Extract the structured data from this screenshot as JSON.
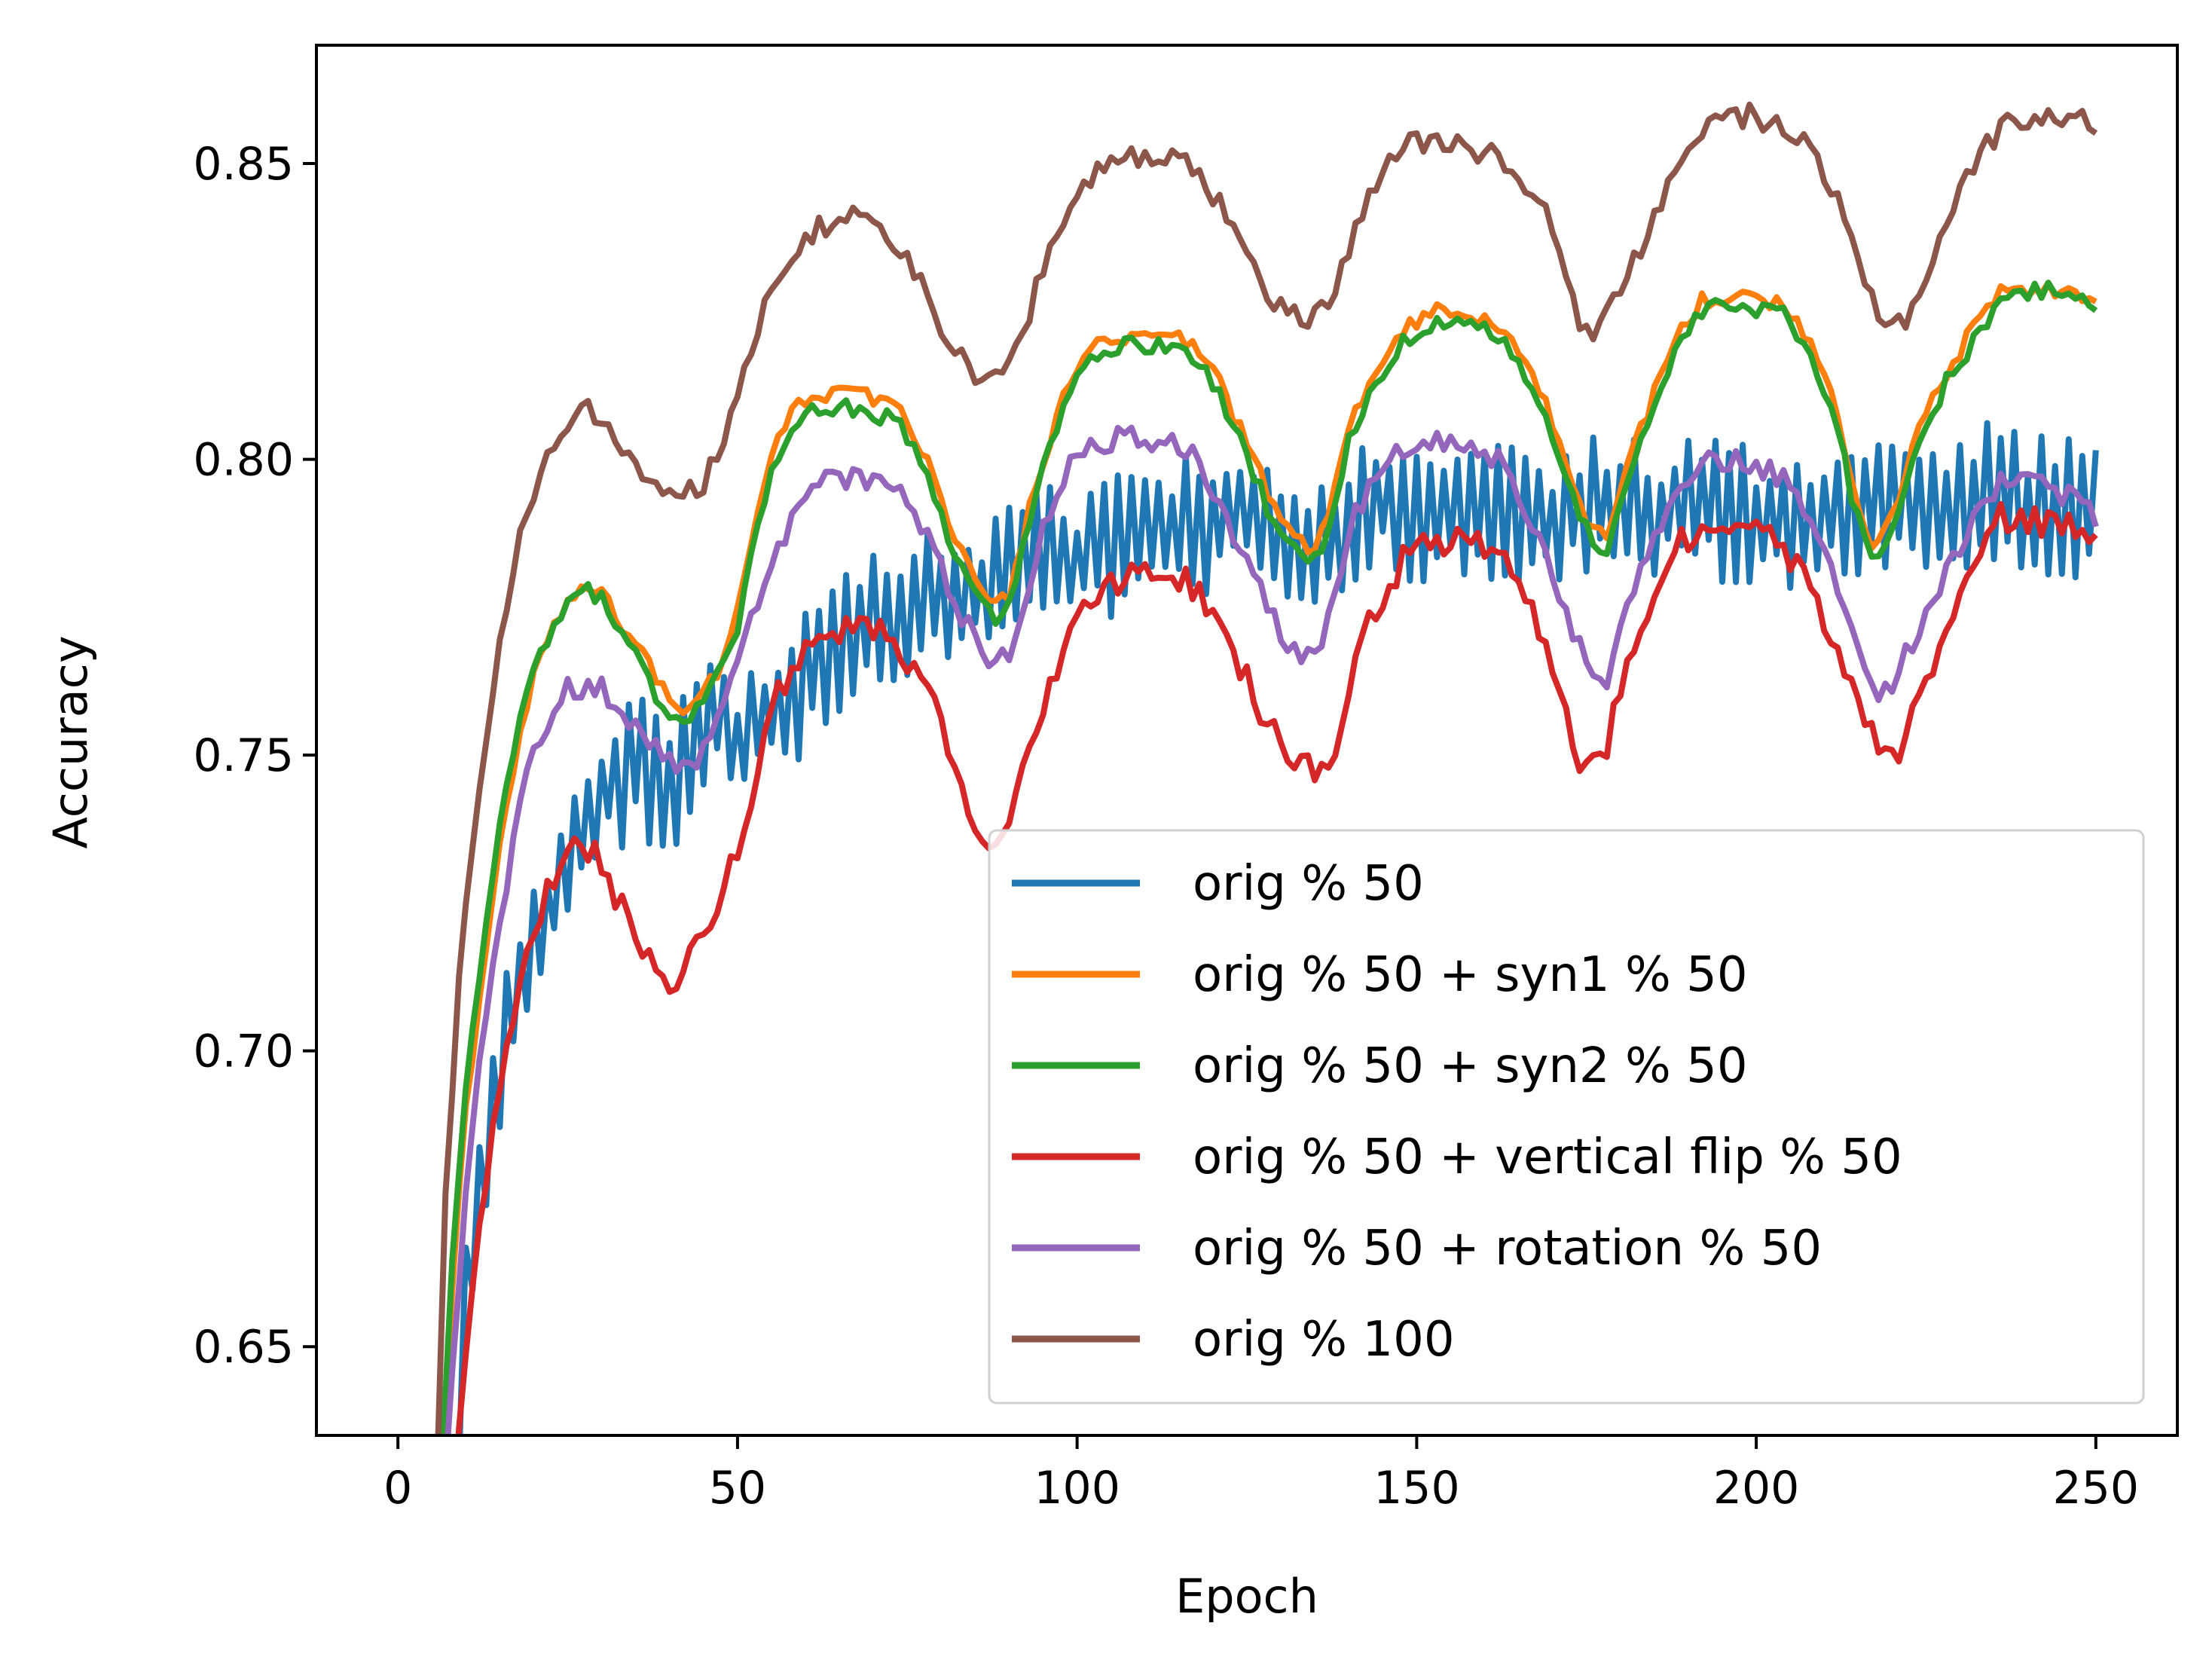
{
  "chart_data": {
    "type": "line",
    "title": "",
    "xlabel": "Epoch",
    "ylabel": "Accuracy",
    "xlim": [
      -12,
      262
    ],
    "ylim": [
      0.635,
      0.87
    ],
    "xticks": [
      0,
      50,
      100,
      150,
      200,
      250
    ],
    "xtick_labels": [
      "0",
      "50",
      "100",
      "150",
      "200",
      "250"
    ],
    "yticks": [
      0.65,
      0.7,
      0.75,
      0.8,
      0.85
    ],
    "ytick_labels": [
      "0.65",
      "0.70",
      "0.75",
      "0.80",
      "0.85"
    ],
    "grid": false,
    "legend_position": "lower-right",
    "series": [
      {
        "name": "orig % 50",
        "color": "#1f77b4",
        "noise": 0.012,
        "x": [
          5,
          8,
          10,
          12,
          14,
          16,
          18,
          20,
          22,
          25,
          28,
          30,
          33,
          36,
          38,
          40,
          42,
          45,
          48,
          50,
          55,
          60,
          65,
          70,
          75,
          80,
          85,
          90,
          95,
          100,
          105,
          110,
          115,
          120,
          125,
          130,
          135,
          140,
          145,
          150,
          155,
          160,
          165,
          170,
          175,
          180,
          185,
          190,
          195,
          200,
          205,
          210,
          215,
          220,
          225,
          230,
          235,
          240,
          245,
          250
        ],
        "y": [
          0.6,
          0.63,
          0.655,
          0.675,
          0.69,
          0.705,
          0.712,
          0.718,
          0.724,
          0.73,
          0.74,
          0.743,
          0.746,
          0.748,
          0.745,
          0.742,
          0.748,
          0.755,
          0.758,
          0.752,
          0.757,
          0.762,
          0.768,
          0.772,
          0.775,
          0.778,
          0.777,
          0.78,
          0.784,
          0.782,
          0.785,
          0.787,
          0.79,
          0.788,
          0.792,
          0.787,
          0.786,
          0.789,
          0.792,
          0.79,
          0.79,
          0.79,
          0.791,
          0.79,
          0.792,
          0.793,
          0.79,
          0.793,
          0.791,
          0.791,
          0.79,
          0.792,
          0.792,
          0.792,
          0.793,
          0.791,
          0.795,
          0.793,
          0.792,
          0.792
        ]
      },
      {
        "name": "orig % 50 + syn1 % 50",
        "color": "#ff7f0e",
        "noise": 0.0015,
        "x": [
          5,
          8,
          10,
          12,
          15,
          18,
          20,
          22,
          25,
          28,
          30,
          33,
          36,
          38,
          40,
          42,
          44,
          46,
          48,
          50,
          52,
          55,
          58,
          62,
          66,
          70,
          74,
          78,
          82,
          86,
          88,
          90,
          92,
          95,
          98,
          100,
          104,
          108,
          112,
          116,
          120,
          124,
          128,
          130,
          132,
          134,
          136,
          138,
          140,
          144,
          148,
          152,
          156,
          160,
          164,
          168,
          172,
          174,
          176,
          178,
          180,
          184,
          188,
          192,
          196,
          200,
          204,
          208,
          212,
          214,
          216,
          218,
          220,
          224,
          228,
          232,
          236,
          240,
          244,
          248,
          250
        ],
        "y": [
          0.6,
          0.66,
          0.69,
          0.71,
          0.735,
          0.755,
          0.763,
          0.77,
          0.776,
          0.778,
          0.777,
          0.772,
          0.768,
          0.762,
          0.76,
          0.758,
          0.76,
          0.762,
          0.766,
          0.775,
          0.787,
          0.8,
          0.808,
          0.811,
          0.812,
          0.81,
          0.808,
          0.8,
          0.787,
          0.778,
          0.775,
          0.777,
          0.787,
          0.8,
          0.81,
          0.816,
          0.82,
          0.821,
          0.82,
          0.82,
          0.815,
          0.805,
          0.795,
          0.79,
          0.788,
          0.785,
          0.787,
          0.795,
          0.805,
          0.815,
          0.822,
          0.825,
          0.825,
          0.824,
          0.82,
          0.812,
          0.8,
          0.792,
          0.788,
          0.787,
          0.795,
          0.808,
          0.82,
          0.827,
          0.828,
          0.827,
          0.826,
          0.82,
          0.808,
          0.796,
          0.787,
          0.785,
          0.79,
          0.805,
          0.815,
          0.822,
          0.828,
          0.829,
          0.829,
          0.828,
          0.827
        ]
      },
      {
        "name": "orig % 50 + syn2 % 50",
        "color": "#2ca02c",
        "noise": 0.0015,
        "x": [
          5,
          8,
          10,
          12,
          15,
          18,
          20,
          22,
          25,
          28,
          30,
          33,
          36,
          38,
          40,
          42,
          44,
          46,
          48,
          50,
          52,
          55,
          58,
          62,
          66,
          70,
          74,
          78,
          82,
          86,
          88,
          90,
          92,
          95,
          98,
          100,
          104,
          108,
          112,
          116,
          120,
          124,
          128,
          130,
          132,
          134,
          136,
          138,
          140,
          144,
          148,
          152,
          156,
          160,
          164,
          168,
          172,
          174,
          176,
          178,
          180,
          184,
          188,
          192,
          196,
          200,
          204,
          208,
          212,
          214,
          216,
          218,
          220,
          224,
          228,
          232,
          236,
          240,
          244,
          248,
          250
        ],
        "y": [
          0.6,
          0.665,
          0.695,
          0.712,
          0.737,
          0.757,
          0.764,
          0.77,
          0.776,
          0.778,
          0.776,
          0.771,
          0.766,
          0.76,
          0.757,
          0.755,
          0.758,
          0.761,
          0.765,
          0.772,
          0.784,
          0.797,
          0.805,
          0.809,
          0.809,
          0.808,
          0.806,
          0.797,
          0.784,
          0.776,
          0.773,
          0.775,
          0.785,
          0.798,
          0.808,
          0.814,
          0.818,
          0.82,
          0.819,
          0.819,
          0.813,
          0.803,
          0.792,
          0.788,
          0.786,
          0.783,
          0.785,
          0.793,
          0.803,
          0.813,
          0.82,
          0.823,
          0.824,
          0.822,
          0.818,
          0.81,
          0.798,
          0.79,
          0.786,
          0.785,
          0.793,
          0.806,
          0.818,
          0.825,
          0.826,
          0.825,
          0.825,
          0.818,
          0.806,
          0.794,
          0.786,
          0.784,
          0.788,
          0.803,
          0.813,
          0.82,
          0.827,
          0.828,
          0.829,
          0.828,
          0.826
        ]
      },
      {
        "name": "orig % 50 + vertical flip % 50",
        "color": "#d62728",
        "noise": 0.0025,
        "x": [
          5,
          8,
          10,
          12,
          15,
          18,
          20,
          22,
          25,
          27,
          29,
          31,
          33,
          35,
          37,
          39,
          41,
          43,
          45,
          47,
          50,
          53,
          56,
          60,
          64,
          68,
          72,
          76,
          80,
          84,
          86,
          88,
          90,
          93,
          96,
          100,
          104,
          108,
          112,
          116,
          120,
          124,
          128,
          132,
          134,
          136,
          138,
          140,
          144,
          148,
          152,
          156,
          160,
          164,
          168,
          172,
          174,
          176,
          178,
          180,
          184,
          188,
          192,
          196,
          200,
          204,
          208,
          212,
          216,
          218,
          220,
          222,
          224,
          228,
          232,
          236,
          240,
          244,
          248,
          250
        ],
        "y": [
          0.6,
          0.62,
          0.65,
          0.672,
          0.695,
          0.712,
          0.72,
          0.727,
          0.733,
          0.735,
          0.733,
          0.728,
          0.724,
          0.72,
          0.716,
          0.712,
          0.71,
          0.715,
          0.72,
          0.725,
          0.735,
          0.748,
          0.76,
          0.768,
          0.771,
          0.772,
          0.77,
          0.765,
          0.755,
          0.742,
          0.736,
          0.733,
          0.738,
          0.75,
          0.762,
          0.772,
          0.778,
          0.781,
          0.781,
          0.78,
          0.775,
          0.765,
          0.755,
          0.749,
          0.748,
          0.748,
          0.752,
          0.762,
          0.775,
          0.783,
          0.786,
          0.786,
          0.785,
          0.782,
          0.772,
          0.757,
          0.747,
          0.748,
          0.752,
          0.762,
          0.775,
          0.785,
          0.788,
          0.789,
          0.788,
          0.785,
          0.778,
          0.767,
          0.757,
          0.752,
          0.749,
          0.753,
          0.76,
          0.771,
          0.782,
          0.79,
          0.79,
          0.789,
          0.788,
          0.788
        ]
      },
      {
        "name": "orig % 50 + rotation % 50",
        "color": "#9467bd",
        "noise": 0.002,
        "x": [
          5,
          8,
          10,
          12,
          15,
          18,
          20,
          22,
          25,
          28,
          30,
          33,
          36,
          38,
          40,
          42,
          44,
          46,
          48,
          50,
          52,
          55,
          58,
          62,
          66,
          70,
          74,
          78,
          82,
          86,
          88,
          90,
          92,
          95,
          98,
          100,
          104,
          108,
          112,
          116,
          120,
          124,
          128,
          130,
          132,
          134,
          136,
          138,
          140,
          144,
          148,
          152,
          156,
          160,
          164,
          168,
          172,
          174,
          176,
          178,
          180,
          184,
          188,
          192,
          196,
          200,
          204,
          208,
          212,
          214,
          216,
          218,
          220,
          224,
          228,
          232,
          236,
          240,
          244,
          248,
          250
        ],
        "y": [
          0.6,
          0.645,
          0.675,
          0.698,
          0.722,
          0.742,
          0.75,
          0.756,
          0.761,
          0.762,
          0.761,
          0.757,
          0.753,
          0.751,
          0.749,
          0.748,
          0.749,
          0.752,
          0.758,
          0.765,
          0.772,
          0.782,
          0.79,
          0.796,
          0.797,
          0.796,
          0.794,
          0.787,
          0.775,
          0.768,
          0.766,
          0.767,
          0.775,
          0.788,
          0.797,
          0.8,
          0.803,
          0.804,
          0.803,
          0.802,
          0.795,
          0.785,
          0.775,
          0.77,
          0.767,
          0.766,
          0.768,
          0.777,
          0.788,
          0.798,
          0.802,
          0.803,
          0.803,
          0.802,
          0.797,
          0.787,
          0.774,
          0.768,
          0.764,
          0.763,
          0.771,
          0.785,
          0.795,
          0.8,
          0.8,
          0.799,
          0.797,
          0.79,
          0.779,
          0.77,
          0.763,
          0.76,
          0.762,
          0.772,
          0.781,
          0.789,
          0.796,
          0.797,
          0.795,
          0.792,
          0.79
        ]
      },
      {
        "name": "orig % 100",
        "color": "#8c564b",
        "noise": 0.002,
        "x": [
          5,
          7,
          9,
          11,
          13,
          15,
          17,
          19,
          21,
          23,
          25,
          27,
          29,
          31,
          33,
          35,
          37,
          39,
          41,
          43,
          45,
          47,
          50,
          53,
          56,
          60,
          64,
          68,
          72,
          76,
          80,
          84,
          86,
          88,
          90,
          93,
          96,
          100,
          104,
          108,
          112,
          116,
          120,
          124,
          128,
          132,
          134,
          136,
          138,
          140,
          144,
          148,
          152,
          156,
          160,
          164,
          168,
          172,
          174,
          176,
          178,
          180,
          184,
          188,
          192,
          196,
          200,
          204,
          208,
          212,
          216,
          218,
          220,
          222,
          224,
          228,
          232,
          236,
          240,
          244,
          248,
          250
        ],
        "y": [
          0.6,
          0.675,
          0.712,
          0.735,
          0.754,
          0.77,
          0.782,
          0.792,
          0.798,
          0.803,
          0.807,
          0.809,
          0.808,
          0.805,
          0.801,
          0.798,
          0.796,
          0.795,
          0.794,
          0.795,
          0.796,
          0.801,
          0.81,
          0.823,
          0.832,
          0.838,
          0.84,
          0.841,
          0.839,
          0.832,
          0.822,
          0.815,
          0.813,
          0.813,
          0.815,
          0.825,
          0.837,
          0.846,
          0.85,
          0.851,
          0.851,
          0.85,
          0.845,
          0.836,
          0.828,
          0.824,
          0.824,
          0.825,
          0.829,
          0.836,
          0.846,
          0.853,
          0.854,
          0.853,
          0.852,
          0.85,
          0.844,
          0.832,
          0.823,
          0.822,
          0.824,
          0.828,
          0.838,
          0.849,
          0.856,
          0.858,
          0.858,
          0.856,
          0.852,
          0.843,
          0.83,
          0.825,
          0.823,
          0.824,
          0.828,
          0.84,
          0.85,
          0.856,
          0.858,
          0.858,
          0.857,
          0.857
        ]
      }
    ]
  }
}
